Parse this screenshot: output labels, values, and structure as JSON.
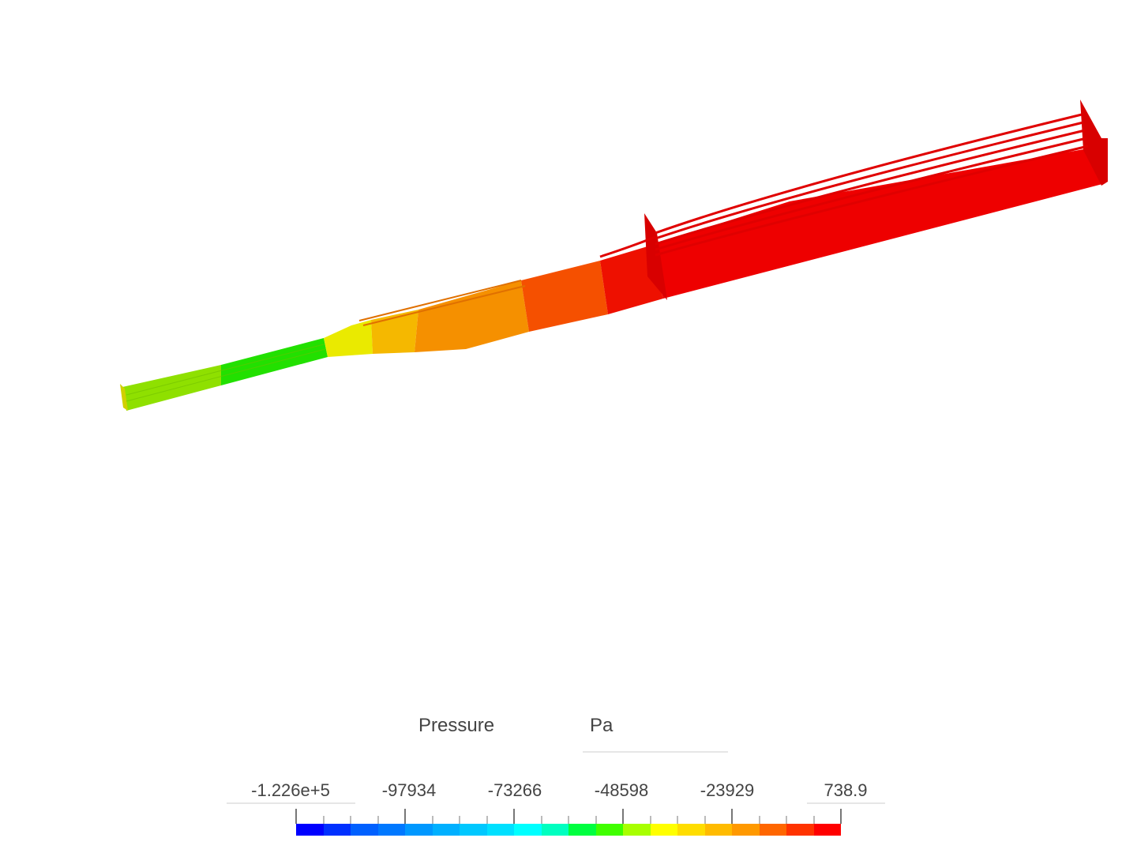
{
  "legend": {
    "title": "Pressure",
    "unit": "Pa",
    "tick_labels": [
      "-1.226e+5",
      "-97934",
      "-73266",
      "-48598",
      "-23929",
      "738.9"
    ],
    "min": -122600,
    "max": 738.9,
    "colors": [
      "#0000ff",
      "#0030ff",
      "#0060ff",
      "#0078ff",
      "#0098ff",
      "#00b0ff",
      "#00c8ff",
      "#00e0ff",
      "#00ffff",
      "#00ffc0",
      "#00ff40",
      "#40ff00",
      "#a8ff00",
      "#ffff00",
      "#ffdd00",
      "#ffbb00",
      "#ff9900",
      "#ff6600",
      "#ff3300",
      "#ff0000"
    ]
  }
}
